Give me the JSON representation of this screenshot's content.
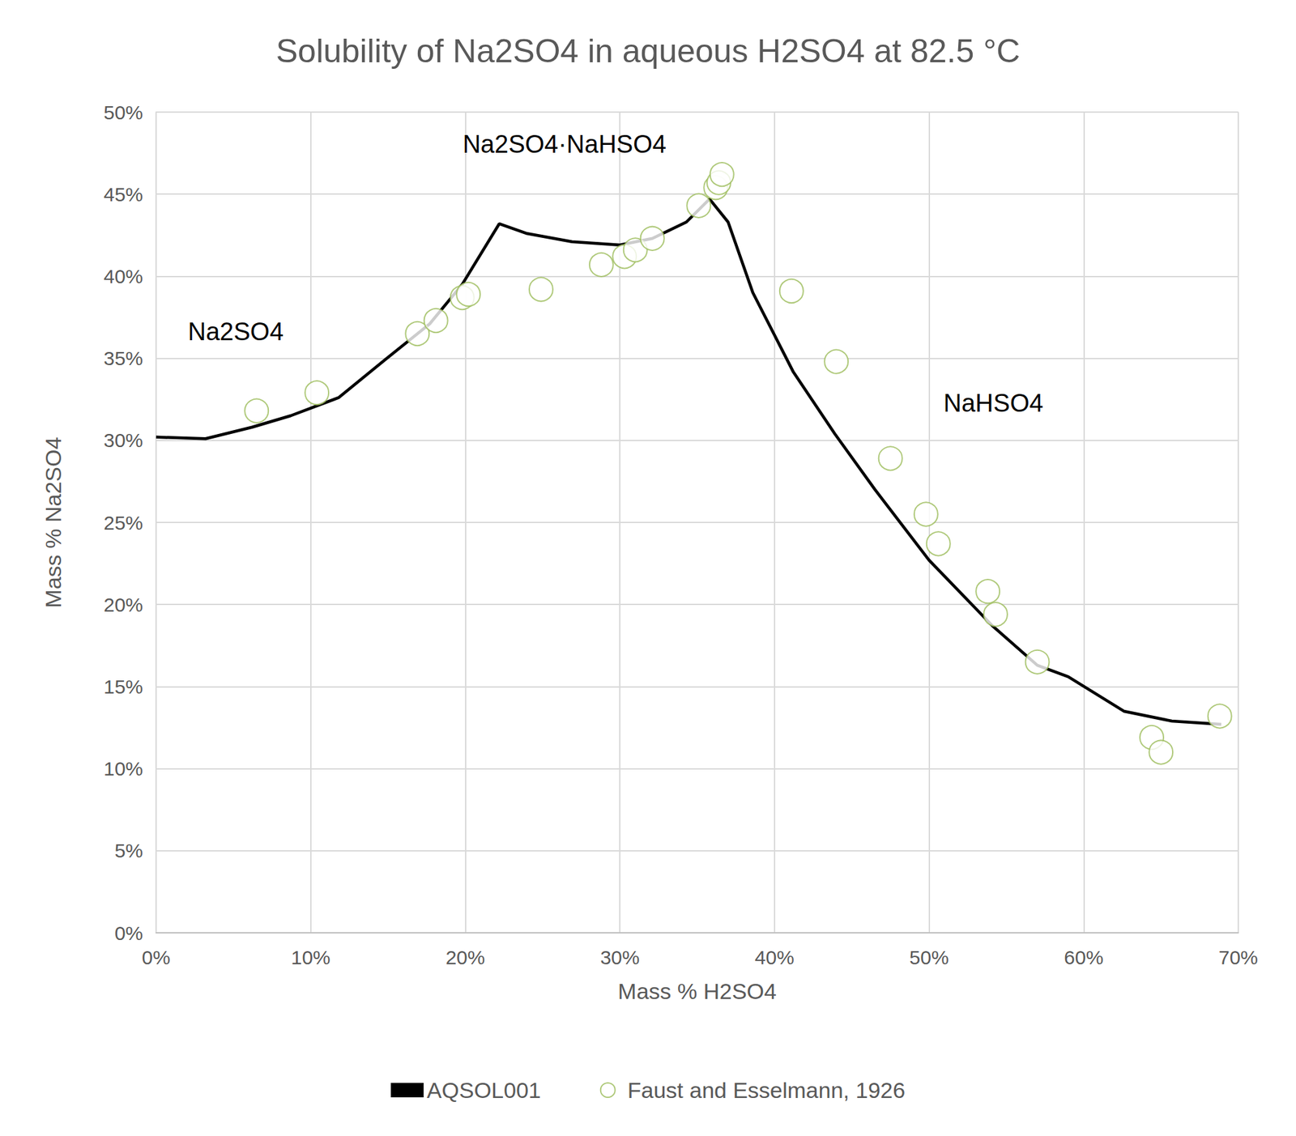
{
  "chart_data": {
    "type": "scatter",
    "title": "Solubility of Na2SO4 in aqueous H2SO4 at 82.5 °C",
    "x_label": "Mass % H2SO4",
    "y_label": "Mass % Na2SO4",
    "annotations": [
      "Na2SO4",
      "Na2SO4·NaHSO4",
      "NaHSO4"
    ],
    "xlim": [
      0,
      70
    ],
    "ylim": [
      0,
      50
    ],
    "xticks": [
      {
        "value": 0,
        "label": "0%"
      },
      {
        "value": 10,
        "label": "10%"
      },
      {
        "value": 20,
        "label": "20%"
      },
      {
        "value": 30,
        "label": "30%"
      },
      {
        "value": 40,
        "label": "40%"
      },
      {
        "value": 50,
        "label": "50%"
      },
      {
        "value": 60,
        "label": "60%"
      },
      {
        "value": 70,
        "label": "70%"
      }
    ],
    "yticks": [
      {
        "value": 0,
        "label": "0%"
      },
      {
        "value": 5,
        "label": "5%"
      },
      {
        "value": 10,
        "label": "10%"
      },
      {
        "value": 15,
        "label": "15%"
      },
      {
        "value": 20,
        "label": "20%"
      },
      {
        "value": 25,
        "label": "25%"
      },
      {
        "value": 30,
        "label": "30%"
      },
      {
        "value": 35,
        "label": "35%"
      },
      {
        "value": 40,
        "label": "40%"
      },
      {
        "value": 45,
        "label": "45%"
      },
      {
        "value": 50,
        "label": "50%"
      }
    ],
    "grid": true,
    "legend": "bottom",
    "series": [
      {
        "name": "AQSOL001",
        "type": "line",
        "color": "#000000",
        "line_style": "solid",
        "x": [
          0,
          3.2,
          6.2,
          8.7,
          11.8,
          14.8,
          17.7,
          19.8,
          22.2,
          24.0,
          26.9,
          30.0,
          32.1,
          34.3,
          35.8,
          37.0,
          38.6,
          41.2,
          43.9,
          46.5,
          50.0,
          54.1,
          57.0,
          59.0,
          62.6,
          65.7,
          68.9
        ],
        "values": [
          30.2,
          30.1,
          30.8,
          31.5,
          32.6,
          34.9,
          37.1,
          39.5,
          43.2,
          42.6,
          42.1,
          41.9,
          42.3,
          43.3,
          44.7,
          43.3,
          39.0,
          34.2,
          30.4,
          27.0,
          22.7,
          18.7,
          16.3,
          15.6,
          13.5,
          12.9,
          12.7
        ]
      },
      {
        "name": "Faust and Esselmann, 1926",
        "type": "scatter",
        "color": "#9bbb59",
        "marker": "circle",
        "x": [
          6.5,
          10.4,
          16.9,
          18.1,
          19.8,
          20.2,
          24.9,
          28.8,
          30.3,
          31.0,
          32.1,
          35.1,
          36.2,
          36.4,
          36.6,
          41.1,
          44.0,
          47.5,
          49.8,
          50.6,
          53.8,
          54.3,
          57.0,
          64.4,
          65.0,
          68.8
        ],
        "values": [
          31.8,
          32.9,
          36.5,
          37.3,
          38.7,
          38.9,
          39.2,
          40.7,
          41.2,
          41.6,
          42.3,
          44.3,
          45.4,
          45.7,
          46.2,
          39.1,
          34.8,
          28.9,
          25.5,
          23.7,
          20.8,
          19.4,
          16.5,
          11.9,
          11.0,
          13.2
        ]
      }
    ]
  }
}
